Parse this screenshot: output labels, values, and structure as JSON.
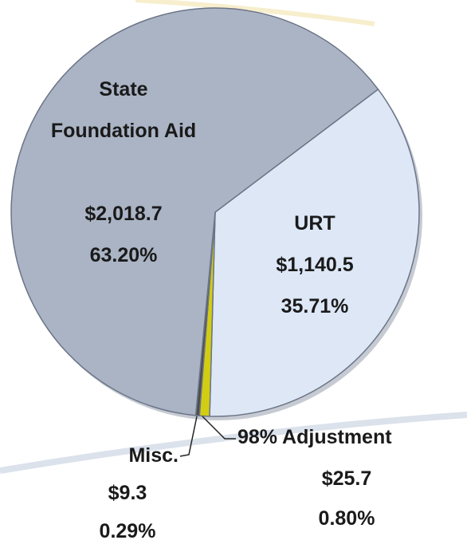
{
  "chart_data": {
    "type": "pie",
    "categories": [
      "URT",
      "98% Adjustment",
      "Misc.",
      "State Foundation Aid"
    ],
    "values": [
      35.71,
      0.8,
      0.29,
      63.2
    ],
    "value_labels": [
      "35.71%",
      "0.80%",
      "0.29%",
      "63.20%"
    ],
    "amount_labels": [
      "$1,140.5",
      "$25.7",
      "$9.3",
      "$2,018.7"
    ],
    "colors": [
      "#dde7f6",
      "#d2cd12",
      "#4d4d4d",
      "#aab4c5"
    ]
  }
}
